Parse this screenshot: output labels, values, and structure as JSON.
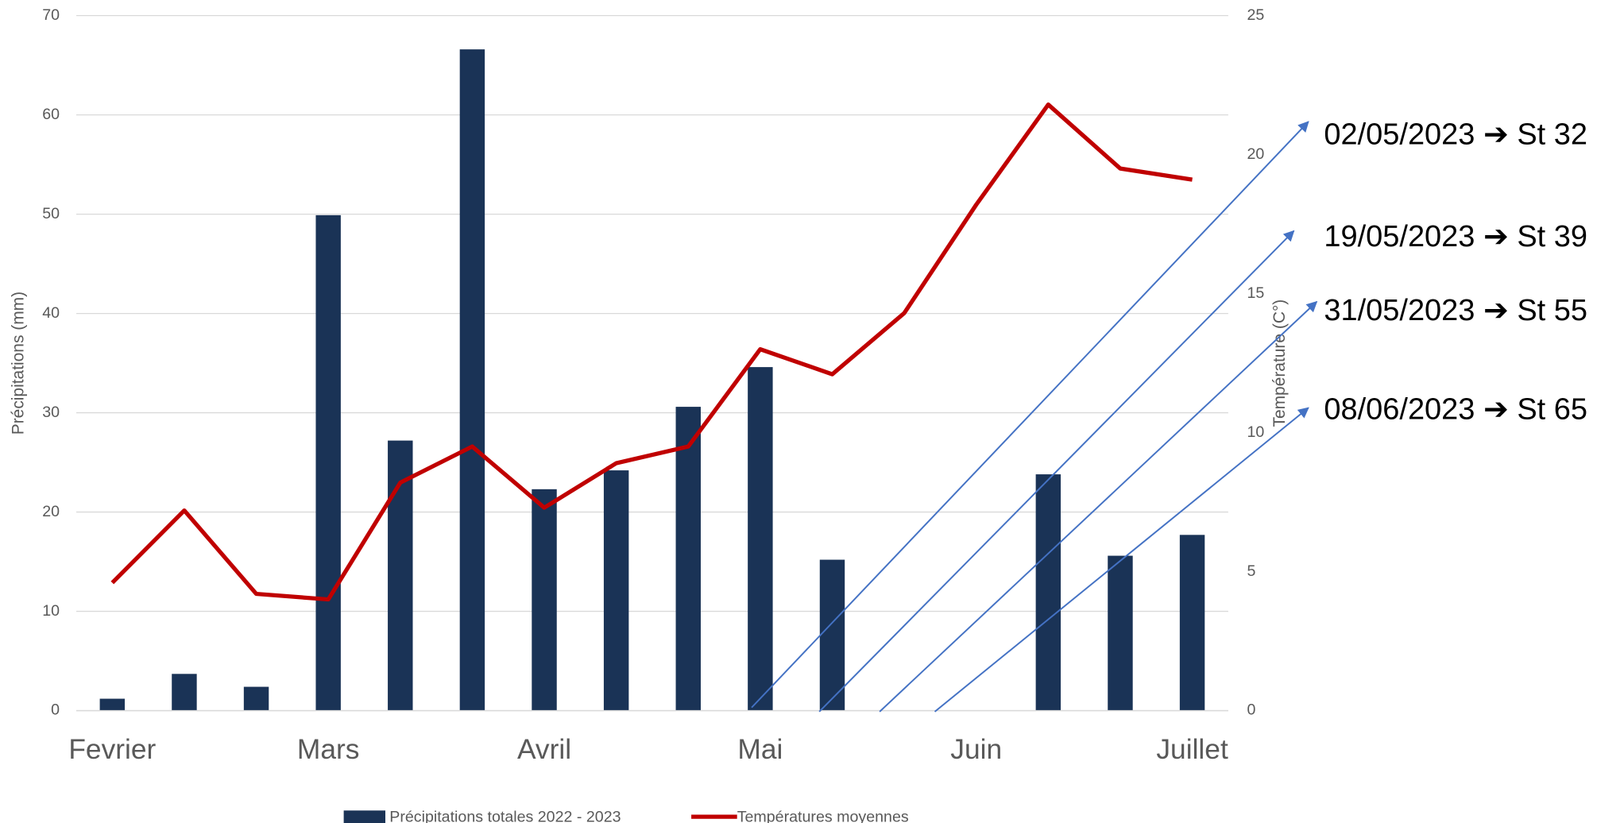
{
  "chart_data": {
    "type": "bar",
    "categories": [
      "Fevrier",
      null,
      null,
      "Mars",
      null,
      null,
      "Avril",
      null,
      null,
      "Mai",
      null,
      null,
      "Juin",
      null,
      null,
      "Juillet"
    ],
    "series": [
      {
        "name": "Précipitations totales 2022 - 2023",
        "color": "#1a3356",
        "type": "bar",
        "values": [
          1.2,
          3.7,
          2.4,
          49.9,
          27.2,
          66.6,
          22.3,
          24.2,
          30.6,
          34.6,
          15.2,
          0,
          0,
          23.8,
          15.6,
          17.7
        ]
      },
      {
        "name": "Températures moyennes",
        "color": "#c00000",
        "type": "line",
        "axis": "y2",
        "values": [
          4.6,
          7.2,
          4.2,
          4.0,
          8.2,
          9.5,
          7.3,
          8.9,
          9.5,
          13.0,
          12.1,
          14.3,
          18.2,
          21.8,
          19.5,
          19.1
        ]
      }
    ],
    "ylabel": "Précipitations (mm)",
    "y2label": "Température (C°)",
    "ylim": [
      0,
      70
    ],
    "yticks": [
      0,
      10,
      20,
      30,
      40,
      50,
      60,
      70
    ],
    "y2lim": [
      0,
      25
    ],
    "y2ticks": [
      0,
      5,
      10,
      15,
      20,
      25
    ],
    "grid": true,
    "legend": "bottom",
    "annotations": [
      "02/05/2023 ➔ St 32",
      "19/05/2023 ➔ St 39",
      "31/05/2023 ➔ St 55",
      "08/06/2023 ➔ St 65"
    ]
  }
}
